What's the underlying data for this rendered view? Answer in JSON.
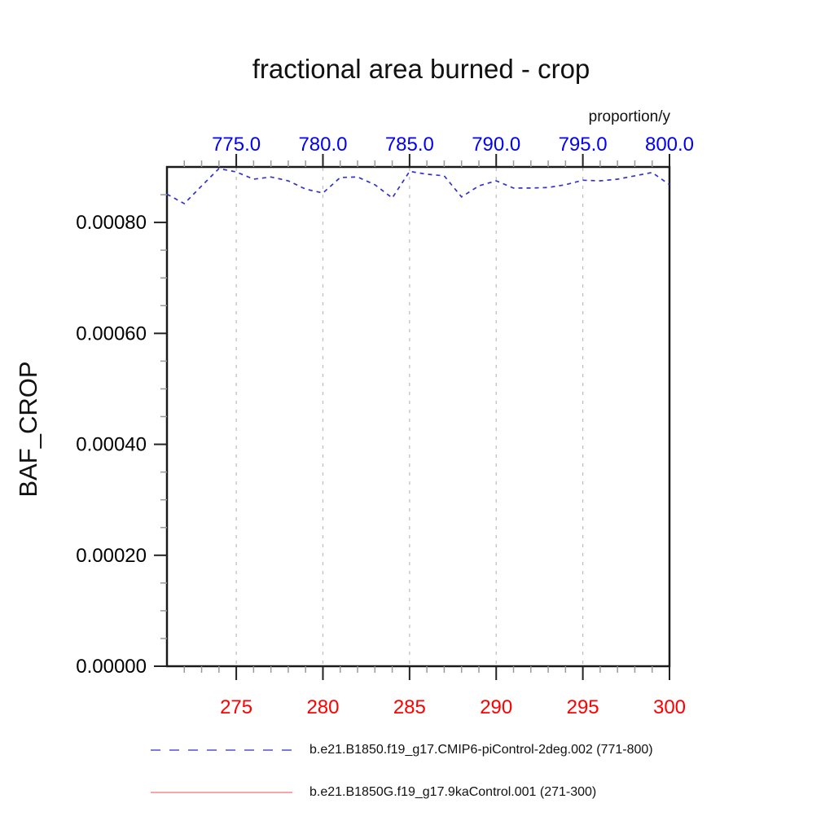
{
  "title": "fractional area burned - crop",
  "background": "#ffffff",
  "chart_data": {
    "type": "line",
    "title": "fractional area burned - crop",
    "unit_label": "proportion/y",
    "ylabel": "BAF_CROP",
    "grid": {
      "vertical_at_top_majors": true,
      "horizontal": false,
      "color": "#bbbbbb",
      "style": "dashed"
    },
    "x_top": {
      "range": [
        771,
        800
      ],
      "major_ticks": [
        775,
        780,
        785,
        790,
        795,
        800
      ],
      "labels": [
        "775.0",
        "780.0",
        "785.0",
        "790.0",
        "795.0",
        "800.0"
      ],
      "minor_step": 1,
      "label_color": "#0000ff"
    },
    "x_bottom": {
      "range": [
        271,
        300
      ],
      "major_ticks": [
        275,
        280,
        285,
        290,
        295,
        300
      ],
      "labels": [
        "275",
        "280",
        "285",
        "290",
        "295",
        "300"
      ],
      "minor_step": 1,
      "label_color": "#ff0000"
    },
    "y": {
      "range": [
        0,
        0.0009
      ],
      "major_ticks": [
        0,
        0.0002,
        0.0004,
        0.0006,
        0.0008
      ],
      "labels": [
        "0.00000",
        "0.00020",
        "0.00040",
        "0.00060",
        "0.00080"
      ],
      "minor_step": 5e-05,
      "label_color": "#000000"
    },
    "series": [
      {
        "name": "b.e21.B1850.f19_g17.CMIP6-piControl-2deg.002 (771-800)",
        "axis": "top",
        "color": "#3232cc",
        "line_style": "dashed",
        "x": [
          771,
          772,
          773,
          774,
          775,
          776,
          777,
          778,
          779,
          780,
          781,
          782,
          783,
          784,
          785,
          786,
          787,
          788,
          789,
          790,
          791,
          792,
          793,
          794,
          795,
          796,
          797,
          798,
          799,
          800
        ],
        "values": [
          0.000851,
          0.000834,
          0.000866,
          0.000897,
          0.000891,
          0.000878,
          0.000882,
          0.000875,
          0.00086,
          0.000853,
          0.000881,
          0.000882,
          0.000868,
          0.000844,
          0.000892,
          0.000887,
          0.000884,
          0.000846,
          0.000866,
          0.000875,
          0.000862,
          0.000862,
          0.000863,
          0.000868,
          0.000876,
          0.000875,
          0.000878,
          0.000884,
          0.00089,
          0.000868
        ]
      },
      {
        "name": "b.e21.B1850G.f19_g17.9kaControl.001 (271-300)",
        "axis": "bottom",
        "color": "#ff5050",
        "line_style": "solid",
        "x": [],
        "values": []
      }
    ]
  },
  "legend": {
    "items": [
      {
        "label": "b.e21.B1850.f19_g17.CMIP6-piControl-2deg.002 (771-800)",
        "line_style": "dashed",
        "color": "#7b7be0"
      },
      {
        "label": "b.e21.B1850G.f19_g17.9kaControl.001 (271-300)",
        "line_style": "solid",
        "color": "#f07070"
      }
    ]
  }
}
